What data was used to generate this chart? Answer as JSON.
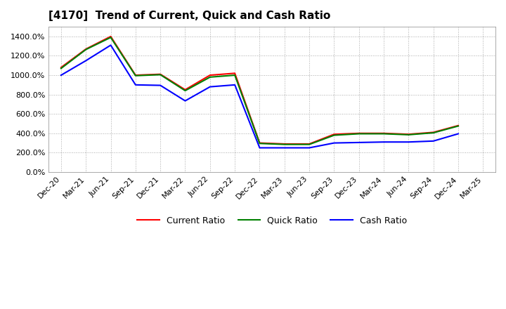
{
  "title": "[4170]  Trend of Current, Quick and Cash Ratio",
  "labels": [
    "Dec-20",
    "Mar-21",
    "Jun-21",
    "Sep-21",
    "Dec-21",
    "Mar-22",
    "Jun-22",
    "Sep-22",
    "Dec-22",
    "Mar-23",
    "Jun-23",
    "Sep-23",
    "Dec-23",
    "Mar-24",
    "Jun-24",
    "Sep-24",
    "Dec-24",
    "Mar-25"
  ],
  "current_ratio": [
    1080,
    1270,
    1400,
    1000,
    1010,
    850,
    1000,
    1020,
    300,
    290,
    290,
    390,
    400,
    400,
    390,
    410,
    480,
    null
  ],
  "quick_ratio": [
    1070,
    1265,
    1390,
    995,
    1005,
    840,
    980,
    1000,
    295,
    285,
    285,
    380,
    395,
    395,
    385,
    405,
    475,
    null
  ],
  "cash_ratio": [
    1000,
    1150,
    1310,
    900,
    895,
    735,
    880,
    900,
    250,
    250,
    250,
    300,
    305,
    310,
    310,
    320,
    395,
    null
  ],
  "ylim": [
    0,
    1500
  ],
  "yticks": [
    0,
    200,
    400,
    600,
    800,
    1000,
    1200,
    1400
  ],
  "current_color": "#ff0000",
  "quick_color": "#008000",
  "cash_color": "#0000ff",
  "background_color": "#ffffff",
  "grid_color": "#aaaaaa",
  "legend_labels": [
    "Current Ratio",
    "Quick Ratio",
    "Cash Ratio"
  ]
}
